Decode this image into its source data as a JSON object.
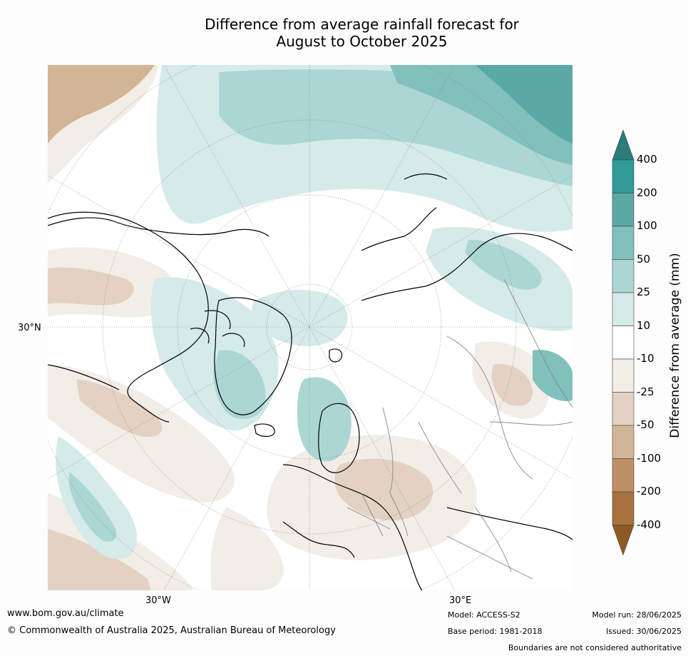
{
  "title": {
    "line1": "Difference from average rainfall forecast for",
    "line2": "August to October 2025"
  },
  "map_labels": {
    "lat_30n": "30°N",
    "lon_30w": "30°W",
    "lon_30e": "30°E"
  },
  "colorbar": {
    "title": "Difference from average (mm)",
    "ticks": [
      "400",
      "200",
      "100",
      "50",
      "25",
      "10",
      "-10",
      "-25",
      "-50",
      "-100",
      "-200",
      "-400"
    ],
    "colors": {
      "over": "#2a7d7a",
      "b200_400": "#2f9a97",
      "b100_200": "#5aa9a5",
      "b50_100": "#82c0bc",
      "b25_50": "#acd6d3",
      "b10_25": "#d5ebe9",
      "b_neutral": "#ffffff",
      "bm25_m10": "#f2ede7",
      "bm50_m25": "#e3d2c2",
      "bm100_m50": "#d2b597",
      "bm200_m100": "#bf9067",
      "bm400_m200": "#a9713d",
      "under": "#8e5a24"
    }
  },
  "footer": {
    "website": "www.bom.gov.au/climate",
    "copyright": "© Commonwealth of Australia 2025, Australian Bureau of Meteorology",
    "model": "Model: ACCESS-S2",
    "base_period": "Base period: 1981-2018",
    "model_run": "Model run: 28/06/2025",
    "issued": "Issued: 30/06/2025",
    "disclaimer": "Boundaries are not considered authoritative"
  }
}
